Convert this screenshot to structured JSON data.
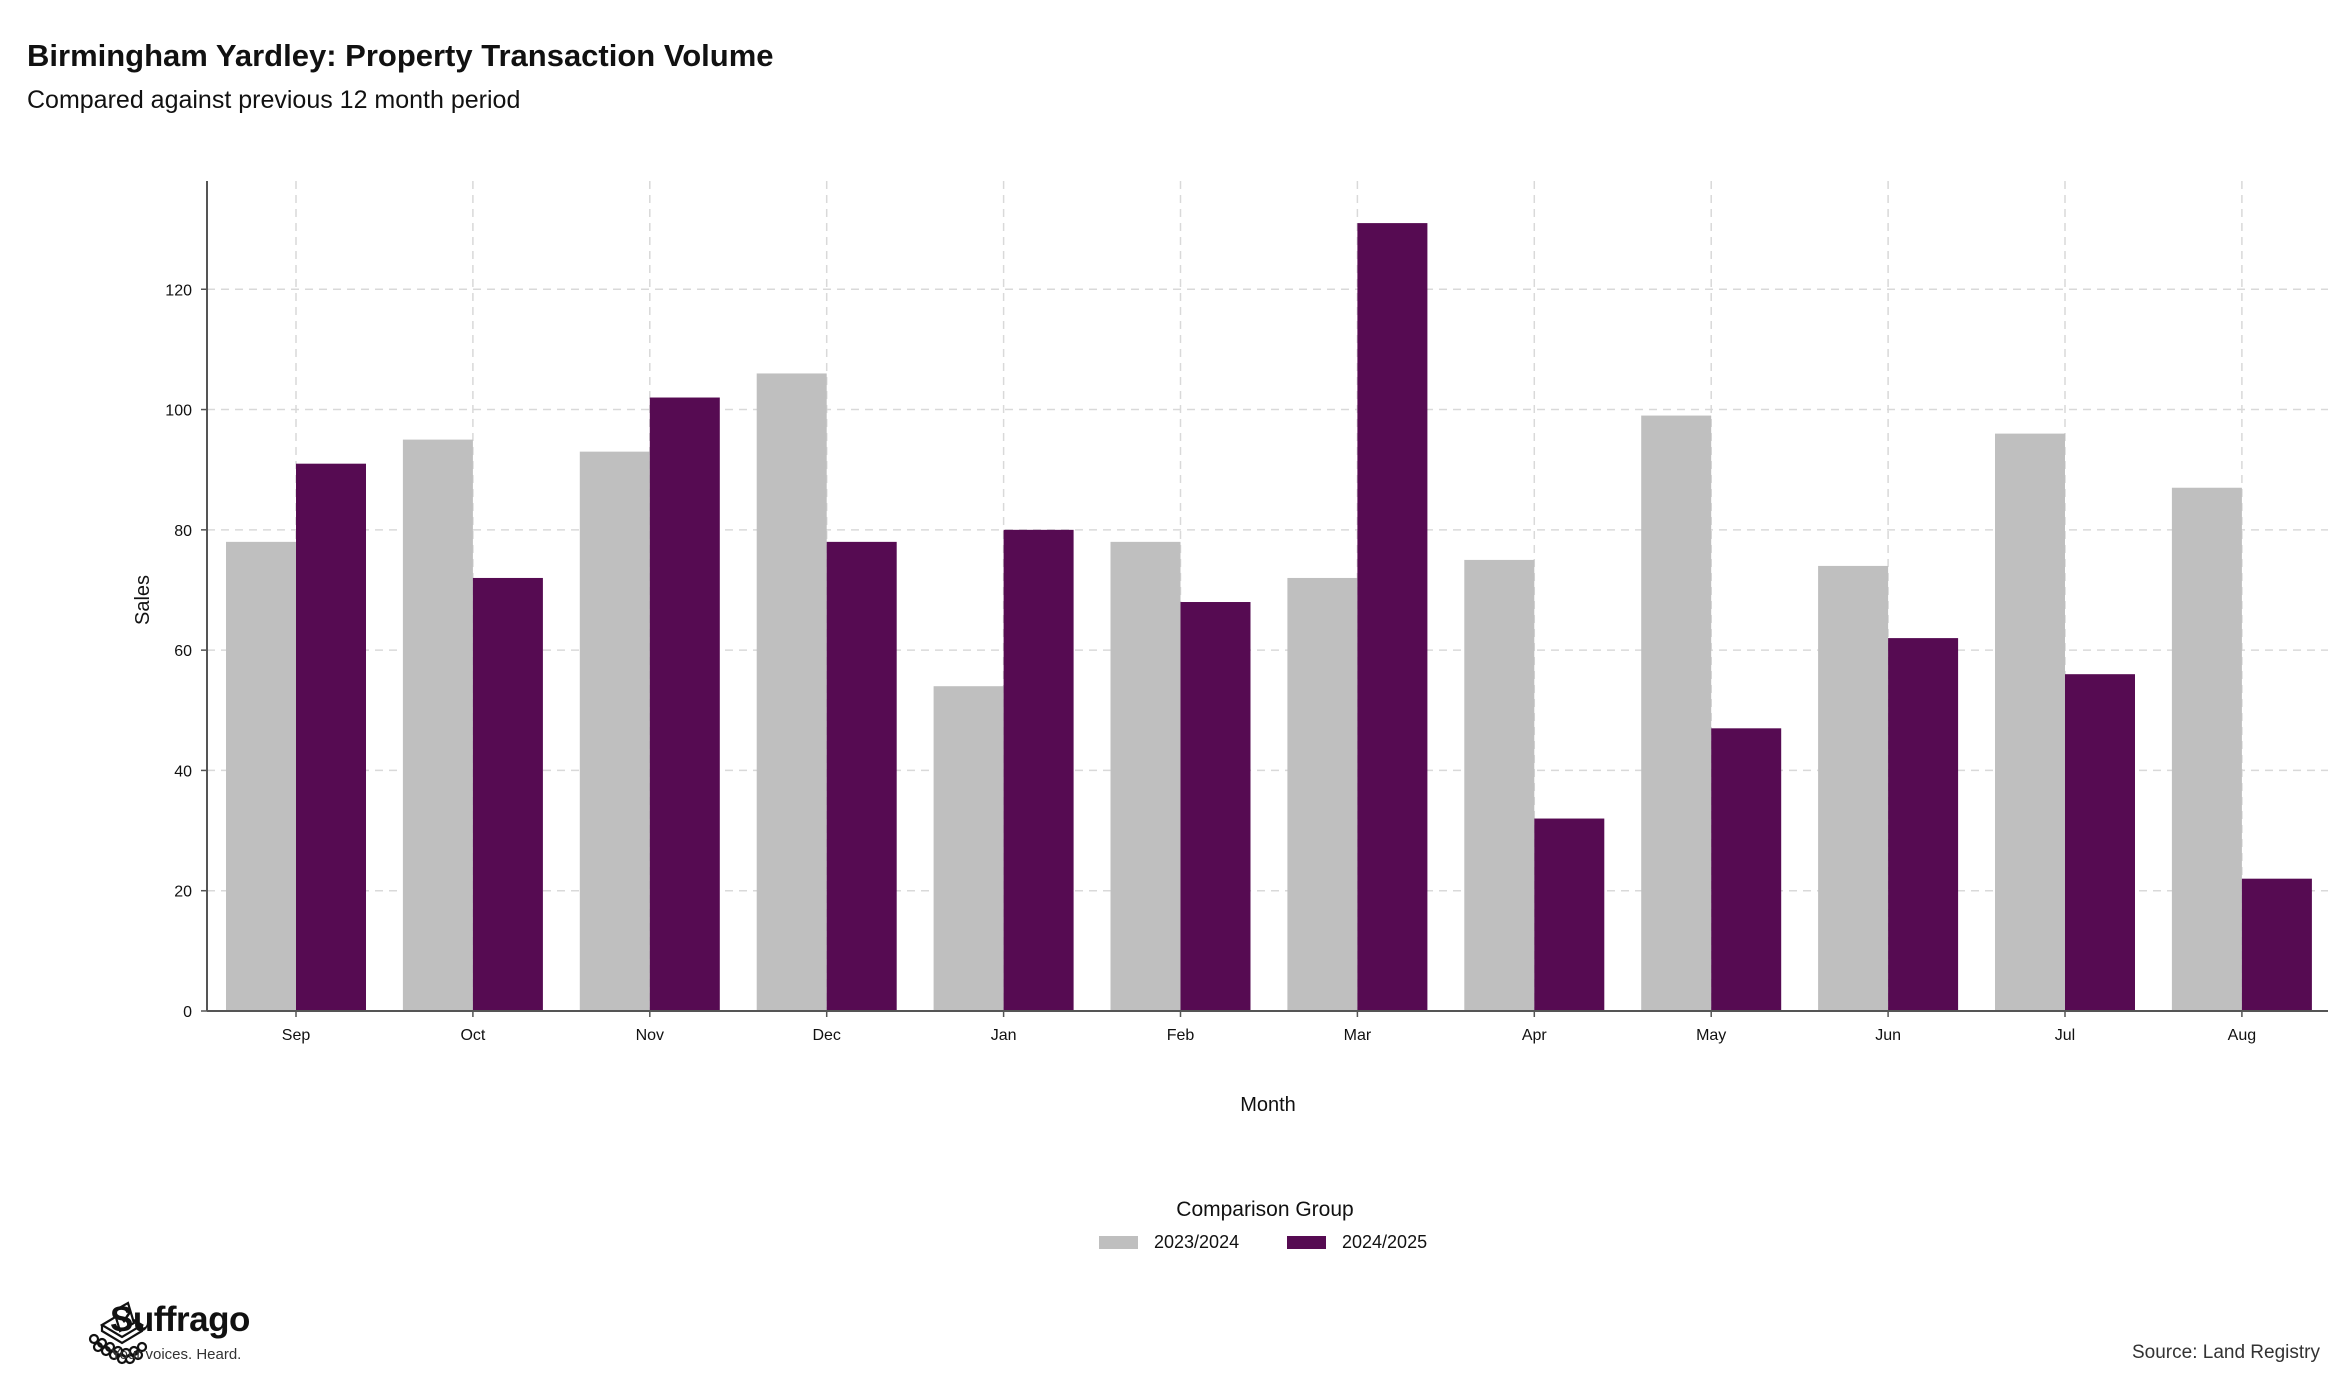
{
  "title": "Birmingham Yardley: Property Transaction Volume",
  "subtitle": "Compared against previous 12 month period",
  "source": "Source: Land Registry",
  "logo": {
    "name": "Suffrago",
    "tagline": "Your voices. Heard.",
    "icon": "ballot-box-icon"
  },
  "colors": {
    "series_2023": "#bfbfbf",
    "series_2024": "#560b52",
    "grid": "#d9d9d9",
    "axis": "#555555"
  },
  "legend": {
    "title": "Comparison Group",
    "items": [
      {
        "label": "2023/2024",
        "color": "#bfbfbf"
      },
      {
        "label": "2024/2025",
        "color": "#560b52"
      }
    ]
  },
  "chart_data": {
    "type": "bar",
    "title": "Birmingham Yardley: Property Transaction Volume",
    "subtitle": "Compared against previous 12 month period",
    "xlabel": "Month",
    "ylabel": "Sales",
    "categories": [
      "Sep",
      "Oct",
      "Nov",
      "Dec",
      "Jan",
      "Feb",
      "Mar",
      "Apr",
      "May",
      "Jun",
      "Jul",
      "Aug"
    ],
    "series": [
      {
        "name": "2023/2024",
        "values": [
          78,
          95,
          93,
          106,
          54,
          78,
          72,
          75,
          99,
          74,
          96,
          87
        ]
      },
      {
        "name": "2024/2025",
        "values": [
          91,
          72,
          102,
          78,
          80,
          68,
          131,
          32,
          47,
          62,
          56,
          22
        ]
      }
    ],
    "ylim": [
      0,
      138
    ],
    "yticks": [
      0,
      20,
      40,
      60,
      80,
      100,
      120
    ],
    "grid": true,
    "legend_position": "bottom"
  }
}
